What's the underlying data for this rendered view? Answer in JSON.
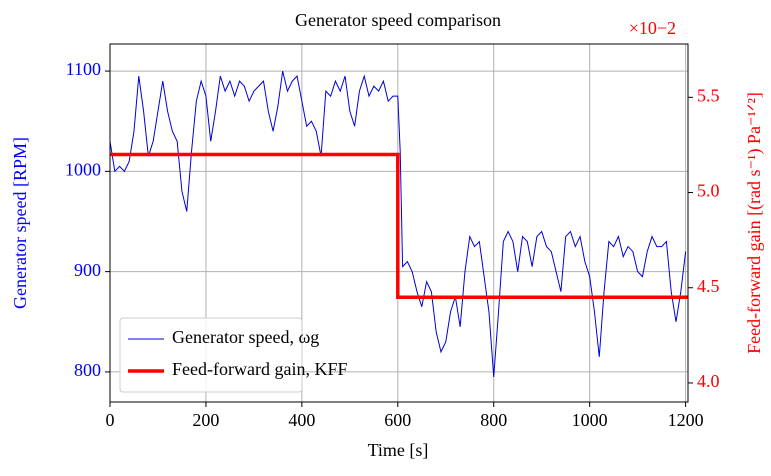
{
  "chart_data": {
    "type": "line",
    "title": "Generator speed comparison",
    "xlabel": "Time [s]",
    "ylabel": "Generator speed [RPM]",
    "y2label": "Feed-forward gain [(rad s⁻¹) Pa⁻¹ᐟ²]",
    "y2_offset": "×10−2",
    "xlim": [
      0,
      1205
    ],
    "xticks": [
      0,
      200,
      400,
      600,
      800,
      1000,
      1200
    ],
    "ylim": [
      770,
      1127
    ],
    "yticks": [
      800,
      900,
      1000,
      1100
    ],
    "y2lim": [
      3.9,
      5.78
    ],
    "y2ticks": [
      4.0,
      4.5,
      5.0,
      5.5
    ],
    "grid": true,
    "legend": "lower left",
    "ycolor": "#0000ff",
    "y2color": "#ff0000",
    "series": [
      {
        "name": "Generator speed, ωg",
        "color": "#0000dd",
        "axis": "y",
        "width": 1,
        "x": [
          0,
          10,
          20,
          30,
          40,
          50,
          60,
          70,
          80,
          90,
          100,
          110,
          120,
          130,
          140,
          150,
          160,
          170,
          180,
          190,
          200,
          210,
          220,
          230,
          240,
          250,
          260,
          270,
          280,
          290,
          300,
          310,
          320,
          330,
          340,
          350,
          360,
          370,
          380,
          390,
          400,
          410,
          420,
          430,
          440,
          450,
          460,
          470,
          480,
          490,
          500,
          510,
          520,
          530,
          540,
          550,
          560,
          570,
          580,
          590,
          600,
          605,
          610,
          620,
          630,
          640,
          650,
          660,
          670,
          680,
          690,
          700,
          710,
          720,
          730,
          740,
          750,
          760,
          770,
          780,
          790,
          800,
          810,
          820,
          830,
          840,
          850,
          860,
          870,
          880,
          890,
          900,
          910,
          920,
          930,
          940,
          950,
          960,
          970,
          980,
          990,
          1000,
          1010,
          1020,
          1030,
          1040,
          1050,
          1060,
          1070,
          1080,
          1090,
          1100,
          1110,
          1120,
          1130,
          1140,
          1150,
          1160,
          1170,
          1180,
          1190,
          1200
        ],
        "values": [
          1030,
          1000,
          1005,
          1000,
          1010,
          1040,
          1095,
          1060,
          1015,
          1030,
          1060,
          1090,
          1060,
          1040,
          1030,
          980,
          960,
          1020,
          1070,
          1090,
          1075,
          1030,
          1060,
          1095,
          1080,
          1090,
          1075,
          1090,
          1085,
          1070,
          1080,
          1085,
          1090,
          1060,
          1040,
          1065,
          1100,
          1080,
          1090,
          1095,
          1070,
          1045,
          1050,
          1040,
          1015,
          1080,
          1075,
          1090,
          1080,
          1095,
          1060,
          1045,
          1080,
          1095,
          1075,
          1085,
          1080,
          1090,
          1070,
          1075,
          1075,
          1020,
          905,
          910,
          900,
          880,
          865,
          890,
          880,
          840,
          820,
          830,
          860,
          875,
          845,
          900,
          935,
          925,
          930,
          895,
          860,
          795,
          860,
          930,
          940,
          930,
          900,
          935,
          930,
          905,
          935,
          940,
          925,
          920,
          900,
          880,
          935,
          940,
          925,
          935,
          910,
          895,
          860,
          815,
          880,
          930,
          925,
          935,
          915,
          925,
          920,
          900,
          895,
          920,
          935,
          925,
          925,
          930,
          880,
          850,
          880,
          920
        ]
      },
      {
        "name": "Feed-forward gain, KFF",
        "color": "#ff0000",
        "axis": "y2",
        "width": 3.5,
        "x": [
          0,
          600,
          600,
          1205
        ],
        "values": [
          5.2,
          5.2,
          4.45,
          4.45
        ]
      }
    ]
  }
}
